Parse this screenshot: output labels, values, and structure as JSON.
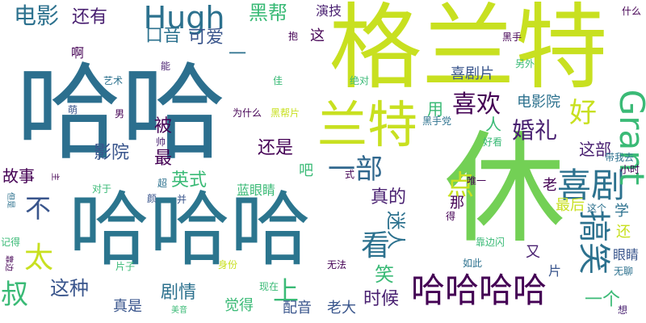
{
  "cloud": {
    "background": "#ffffff",
    "words": [
      {
        "text": "哈哈",
        "color": "#2c6f8e"
      },
      {
        "text": "格兰特",
        "color": "#c8e020"
      },
      {
        "text": "休",
        "color": "#73d055"
      },
      {
        "text": "哈哈哈",
        "color": "#2b758e"
      },
      {
        "text": "兰特",
        "color": "#c8e020"
      },
      {
        "text": "Hugh",
        "color": "#2c718e"
      },
      {
        "text": "喜剧",
        "color": "#2c718e"
      },
      {
        "text": "搞笑",
        "color": "#2c718e"
      },
      {
        "text": "哈哈哈哈",
        "color": "#440154"
      },
      {
        "text": "Grant",
        "color": "#3aba76"
      },
      {
        "text": "电影",
        "color": "#2c718e"
      },
      {
        "text": "一部",
        "color": "#31688e"
      },
      {
        "text": "喜欢",
        "color": "#440154"
      },
      {
        "text": "好",
        "color": "#c8e020"
      },
      {
        "text": "婚礼",
        "color": "#481f70"
      },
      {
        "text": "太",
        "color": "#c8e020"
      },
      {
        "text": "叔",
        "color": "#3aba76"
      },
      {
        "text": "不",
        "color": "#39558c"
      },
      {
        "text": "看",
        "color": "#2c718e"
      },
      {
        "text": "上",
        "color": "#3aba76"
      },
      {
        "text": "迷人",
        "color": "#2c718e"
      },
      {
        "text": "点",
        "color": "#c8e020"
      },
      {
        "text": "笑",
        "color": "#3aba76"
      },
      {
        "text": "还有",
        "color": "#481f70"
      },
      {
        "text": "黑帮",
        "color": "#3aba76"
      },
      {
        "text": "口音",
        "color": "#2c718e"
      },
      {
        "text": "可爱",
        "color": "#39558c"
      },
      {
        "text": "影院",
        "color": "#39558c"
      },
      {
        "text": "还是",
        "color": "#440154"
      },
      {
        "text": "英式",
        "color": "#3aba76"
      },
      {
        "text": "真的",
        "color": "#481f70"
      },
      {
        "text": "这种",
        "color": "#39558c"
      },
      {
        "text": "剧情",
        "color": "#2c718e"
      },
      {
        "text": "时候",
        "color": "#481f70"
      },
      {
        "text": "一个",
        "color": "#3aba76"
      },
      {
        "text": "故事",
        "color": "#440154"
      },
      {
        "text": "被",
        "color": "#440154"
      },
      {
        "text": "最",
        "color": "#440154"
      },
      {
        "text": "这部",
        "color": "#481f70"
      },
      {
        "text": "喜剧片",
        "color": "#39558c"
      },
      {
        "text": "电影院",
        "color": "#2c718e"
      },
      {
        "text": "演技",
        "color": "#481f70"
      },
      {
        "text": "这",
        "color": "#440154"
      },
      {
        "text": "用",
        "color": "#3aba76"
      },
      {
        "text": "人",
        "color": "#3aba76"
      },
      {
        "text": "啊",
        "color": "#440154"
      },
      {
        "text": "一",
        "color": "#2c718e"
      },
      {
        "text": "吧",
        "color": "#3aba76"
      },
      {
        "text": "蓝眼睛",
        "color": "#3aba76"
      },
      {
        "text": "那",
        "color": "#440154"
      },
      {
        "text": "老",
        "color": "#440154"
      },
      {
        "text": "最后",
        "color": "#c8e020"
      },
      {
        "text": "学",
        "color": "#2c718e"
      },
      {
        "text": "还",
        "color": "#c8e020"
      },
      {
        "text": "眼睛",
        "color": "#39558c"
      },
      {
        "text": "又",
        "color": "#481f70"
      },
      {
        "text": "片",
        "color": "#39558c"
      },
      {
        "text": "真是",
        "color": "#39558c"
      },
      {
        "text": "觉得",
        "color": "#3aba76"
      },
      {
        "text": "配音",
        "color": "#39558c"
      },
      {
        "text": "老大",
        "color": "#39558c"
      },
      {
        "text": "黑手",
        "color": "#440154"
      },
      {
        "text": "另外",
        "color": "#3aba76"
      },
      {
        "text": "什么",
        "color": "#440154"
      },
      {
        "text": "抱",
        "color": "#440154"
      },
      {
        "text": "能",
        "color": "#481f70"
      },
      {
        "text": "艺术",
        "color": "#2c718e"
      },
      {
        "text": "佳",
        "color": "#3aba76"
      },
      {
        "text": "绝对",
        "color": "#3aba76"
      },
      {
        "text": "萌",
        "color": "#39558c"
      },
      {
        "text": "男",
        "color": "#440154"
      },
      {
        "text": "为什么",
        "color": "#440154"
      },
      {
        "text": "黑帮片",
        "color": "#c8e020"
      },
      {
        "text": "黑手党",
        "color": "#2c718e"
      },
      {
        "text": "帅",
        "color": "#481f70"
      },
      {
        "text": "好看",
        "color": "#3aba76"
      },
      {
        "text": "带我去",
        "color": "#2c718e"
      },
      {
        "text": "小时",
        "color": "#440154"
      },
      {
        "text": "式",
        "color": "#440154"
      },
      {
        "text": "唯一",
        "color": "#440154"
      },
      {
        "text": "主",
        "color": "#440154"
      },
      {
        "text": "对于",
        "color": "#3aba76"
      },
      {
        "text": "超",
        "color": "#2c718e"
      },
      {
        "text": "并",
        "color": "#39558c"
      },
      {
        "text": "颜",
        "color": "#39558c"
      },
      {
        "text": "但是",
        "color": "#2c718e"
      },
      {
        "text": "这个",
        "color": "#2c718e"
      },
      {
        "text": "得",
        "color": "#440154"
      },
      {
        "text": "靠边闪",
        "color": "#3aba76"
      },
      {
        "text": "记得",
        "color": "#3aba76"
      },
      {
        "text": "片子",
        "color": "#3aba76"
      },
      {
        "text": "身份",
        "color": "#c8e020"
      },
      {
        "text": "无法",
        "color": "#440154"
      },
      {
        "text": "如此",
        "color": "#2c718e"
      },
      {
        "text": "无聊",
        "color": "#2c718e"
      },
      {
        "text": "靠边",
        "color": "#440154"
      },
      {
        "text": "现在",
        "color": "#3aba76"
      },
      {
        "text": "美音",
        "color": "#3aba76"
      },
      {
        "text": "想",
        "color": "#481f70"
      },
      {
        "text": "幽默",
        "color": "#481f70"
      }
    ]
  }
}
